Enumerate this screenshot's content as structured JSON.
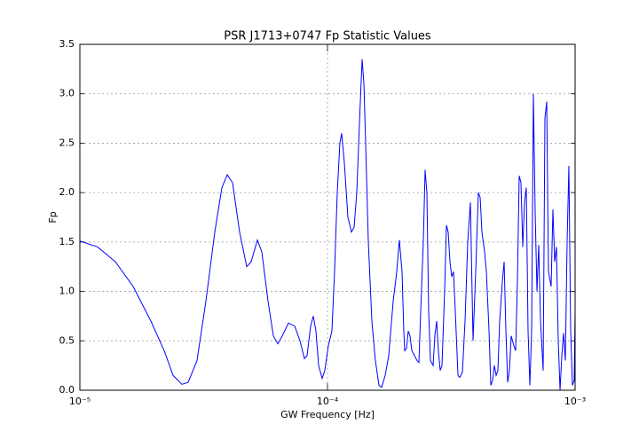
{
  "chart_data": {
    "type": "line",
    "title": "PSR J1713+0747 Fp Statistic Values",
    "x_label": "GW Frequency [Hz]",
    "y_label": "Fp",
    "x_log": true,
    "grid": true,
    "color": "#0000ff",
    "xlim": [
      1e-05,
      0.001
    ],
    "xticks": [
      {
        "value": 1e-05,
        "label": "10⁻⁵"
      },
      {
        "value": 0.0001,
        "label": "10⁻⁴"
      },
      {
        "value": 0.001,
        "label": "10⁻³"
      }
    ],
    "ylim": [
      0,
      3.5
    ],
    "yticks": [
      {
        "value": 0,
        "label": "0.0"
      },
      0.5,
      {
        "value": 1,
        "label": "1.0"
      },
      1.5,
      {
        "value": 2,
        "label": "2.0"
      },
      2.5,
      {
        "value": 3,
        "label": "3.0"
      },
      3.5
    ],
    "x": [
      1e-05,
      1.179e-05,
      1.391e-05,
      1.641e-05,
      1.935e-05,
      2.191e-05,
      2.379e-05,
      2.584e-05,
      2.737e-05,
      2.972e-05,
      3.228e-05,
      3.506e-05,
      3.746e-05,
      3.936e-05,
      4.136e-05,
      4.417e-05,
      4.719e-05,
      4.918e-05,
      5.211e-05,
      5.43e-05,
      5.753e-05,
      6.045e-05,
      6.3e-05,
      6.566e-05,
      6.956e-05,
      7.37e-05,
      7.743e-05,
      8.069e-05,
      8.272e-05,
      8.55e-05,
      8.764e-05,
      8.981e-05,
      9.209e-05,
      9.517e-05,
      9.755e-05,
      0.0001008,
      0.0001042,
      0.0001068,
      0.0001095,
      0.0001122,
      0.0001141,
      0.000117,
      0.0001209,
      0.000125,
      0.0001281,
      0.0001313,
      0.0001346,
      0.000138,
      0.0001403,
      0.0001426,
      0.0001462,
      0.0001511,
      0.0001561,
      0.0001614,
      0.0001654,
      0.000171,
      0.0001767,
      0.0001842,
      0.0001904,
      0.0001951,
      0.0002,
      0.0002033,
      0.000205,
      0.0002084,
      0.0002119,
      0.0002154,
      0.0002191,
      0.0002246,
      0.0002301,
      0.000234,
      0.0002379,
      0.0002438,
      0.0002479,
      0.000252,
      0.0002562,
      0.0002605,
      0.000267,
      0.0002714,
      0.000276,
      0.0002805,
      0.0002852,
      0.00029,
      0.0002972,
      0.0003022,
      0.0003072,
      0.0003124,
      0.0003175,
      0.0003228,
      0.0003282,
      0.0003365,
      0.0003421,
      0.0003506,
      0.0003594,
      0.0003684,
      0.0003777,
      0.0003871,
      0.0003968,
      0.0004067,
      0.0004136,
      0.0004205,
      0.000431,
      0.0004382,
      0.0004492,
      0.0004566,
      0.0004642,
      0.0004719,
      0.0004798,
      0.0004878,
      0.0004959,
      0.0005083,
      0.0005168,
      0.0005254,
      0.0005341,
      0.000543,
      0.000552,
      0.0005659,
      0.0005753,
      0.0005848,
      0.0005946,
      0.0006045,
      0.0006145,
      0.0006248,
      0.0006352,
      0.0006457,
      0.0006566,
      0.0006675,
      0.0006785,
      0.0006899,
      0.0007014,
      0.0007129,
      0.0007249,
      0.0007431,
      0.0007553,
      0.0007679,
      0.0007807,
      0.0008002,
      0.0008136,
      0.0008272,
      0.0008408,
      0.000855,
      0.0008693,
      0.0008836,
      0.0008981,
      0.0009133,
      0.0009284,
      0.0009438,
      0.0009596,
      0.0009755,
      0.0009917,
      0.001
    ],
    "values": [
      1.51,
      1.45,
      1.3,
      1.05,
      0.7,
      0.4,
      0.15,
      0.06,
      0.08,
      0.3,
      0.9,
      1.6,
      2.05,
      2.18,
      2.1,
      1.6,
      1.25,
      1.3,
      1.52,
      1.4,
      0.9,
      0.55,
      0.47,
      0.55,
      0.68,
      0.65,
      0.5,
      0.32,
      0.35,
      0.65,
      0.75,
      0.6,
      0.25,
      0.12,
      0.2,
      0.45,
      0.6,
      1.2,
      2.0,
      2.5,
      2.6,
      2.3,
      1.75,
      1.6,
      1.65,
      2.0,
      2.7,
      3.35,
      3.1,
      2.5,
      1.5,
      0.7,
      0.3,
      0.05,
      0.03,
      0.15,
      0.35,
      0.9,
      1.2,
      1.52,
      1.2,
      0.6,
      0.4,
      0.42,
      0.6,
      0.55,
      0.4,
      0.35,
      0.3,
      0.28,
      0.8,
      1.5,
      2.23,
      2.0,
      0.8,
      0.3,
      0.25,
      0.55,
      0.7,
      0.4,
      0.2,
      0.25,
      1.0,
      1.67,
      1.6,
      1.3,
      1.15,
      1.2,
      0.8,
      0.15,
      0.13,
      0.18,
      0.7,
      1.5,
      1.9,
      0.5,
      1.2,
      2.0,
      1.95,
      1.6,
      1.4,
      1.2,
      0.6,
      0.05,
      0.1,
      0.25,
      0.15,
      0.2,
      0.7,
      1.1,
      1.3,
      0.6,
      0.08,
      0.2,
      0.55,
      0.45,
      0.4,
      1.1,
      2.17,
      2.1,
      1.45,
      1.9,
      2.05,
      0.6,
      0.05,
      0.6,
      3.0,
      1.8,
      1.0,
      1.47,
      0.7,
      0.2,
      2.75,
      2.92,
      1.2,
      1.05,
      1.83,
      1.3,
      1.45,
      0.5,
      0.0,
      0.35,
      0.58,
      0.3,
      1.5,
      2.27,
      0.6,
      0.05,
      0.1,
      0.8
    ]
  }
}
